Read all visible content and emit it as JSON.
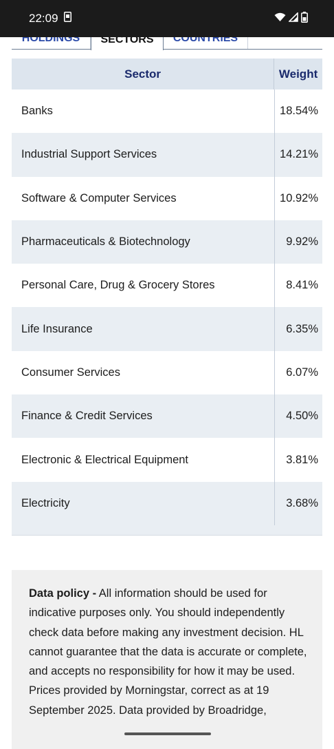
{
  "status_bar": {
    "time": "22:09"
  },
  "tabs": [
    {
      "label": "HOLDINGS"
    },
    {
      "label": "SECTORS"
    },
    {
      "label": "COUNTRIES"
    }
  ],
  "table": {
    "header_sector": "Sector",
    "header_weight": "Weight",
    "rows": [
      {
        "sector": "Banks",
        "weight": "18.54%"
      },
      {
        "sector": "Industrial Support Services",
        "weight": "14.21%"
      },
      {
        "sector": "Software & Computer Services",
        "weight": "10.92%"
      },
      {
        "sector": "Pharmaceuticals & Biotechnology",
        "weight": "9.92%"
      },
      {
        "sector": "Personal Care, Drug & Grocery Stores",
        "weight": "8.41%"
      },
      {
        "sector": "Life Insurance",
        "weight": "6.35%"
      },
      {
        "sector": "Consumer Services",
        "weight": "6.07%"
      },
      {
        "sector": "Finance & Credit Services",
        "weight": "4.50%"
      },
      {
        "sector": "Electronic & Electrical Equipment",
        "weight": "3.81%"
      },
      {
        "sector": "Electricity",
        "weight": "3.68%"
      }
    ]
  },
  "policy": {
    "title": "Data policy -",
    "text": "All information should be used for indicative purposes only. You should independently check data before making any investment decision. HL cannot guarantee that the data is accurate or complete, and accepts no responsibility for how it may be used. Prices provided by Morningstar, correct as at 19 September 2025. Data provided by Broadridge,"
  }
}
